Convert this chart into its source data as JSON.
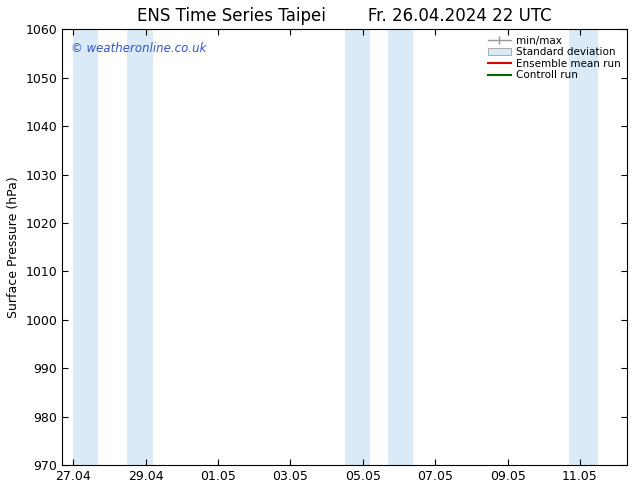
{
  "title": "ENS Time Series Taipei",
  "title_right": "Fr. 26.04.2024 22 UTC",
  "ylabel": "Surface Pressure (hPa)",
  "ylim": [
    970,
    1060
  ],
  "yticks": [
    970,
    980,
    990,
    1000,
    1010,
    1020,
    1030,
    1040,
    1050,
    1060
  ],
  "xtick_labels": [
    "27.04",
    "29.04",
    "01.05",
    "03.05",
    "05.05",
    "07.05",
    "09.05",
    "11.05"
  ],
  "xtick_positions": [
    0,
    2,
    4,
    6,
    8,
    10,
    12,
    14
  ],
  "xlim": [
    -0.3,
    15.3
  ],
  "background_color": "#ffffff",
  "plot_bg_color": "#ffffff",
  "shaded_band_color": "#daeaf7",
  "watermark_text": "© weatheronline.co.uk",
  "watermark_color": "#3355cc",
  "legend_labels": [
    "min/max",
    "Standard deviation",
    "Ensemble mean run",
    "Controll run"
  ],
  "shaded_ranges": [
    [
      0.0,
      0.7
    ],
    [
      1.5,
      2.2
    ],
    [
      7.5,
      8.2
    ],
    [
      8.7,
      9.4
    ],
    [
      13.7,
      14.5
    ]
  ],
  "font_size": 9,
  "title_font_size": 12
}
